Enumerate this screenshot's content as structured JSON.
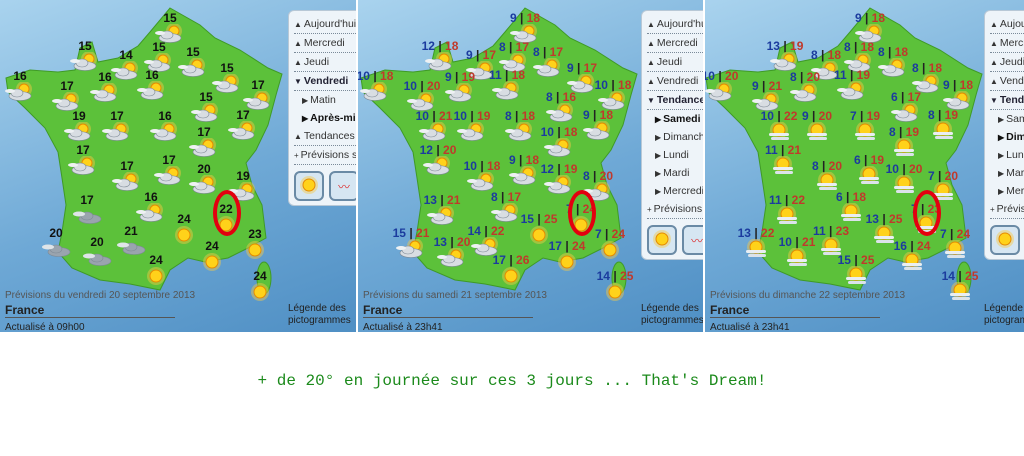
{
  "panels": [
    {
      "menu": [
        {
          "label": "Aujourd'hui",
          "state": "collapsed"
        },
        {
          "label": "Mercredi",
          "state": "collapsed"
        },
        {
          "label": "Jeudi",
          "state": "collapsed"
        },
        {
          "label": "Vendredi",
          "state": "expanded"
        },
        {
          "label": "Matin",
          "state": "sub"
        },
        {
          "label": "Après-midi",
          "state": "selected"
        },
        {
          "label": "Tendances jours suivants",
          "state": "collapsed"
        },
        {
          "label": "Prévisions saisonnières",
          "state": "link"
        }
      ],
      "forecast_date": "Prévisions du vendredi 20 septembre 2013",
      "region": "France",
      "updated": "Actualisé à 09h00",
      "legend": "Légende des pictogrammes",
      "cities": [
        {
          "t": "15",
          "icon": "partly-cloudy"
        },
        {
          "t": "15",
          "icon": "partly-cloudy"
        },
        {
          "t": "14",
          "icon": "partly-cloudy"
        },
        {
          "t": "15",
          "icon": "partly-cloudy"
        },
        {
          "t": "15",
          "icon": "partly-cloudy"
        },
        {
          "t": "15",
          "icon": "partly-cloudy"
        },
        {
          "t": "16",
          "icon": "partly-cloudy"
        },
        {
          "t": "17",
          "icon": "partly-cloudy"
        },
        {
          "t": "16",
          "icon": "partly-cloudy"
        },
        {
          "t": "16",
          "icon": "partly-cloudy"
        },
        {
          "t": "17",
          "icon": "partly-cloudy"
        },
        {
          "t": "15",
          "icon": "partly-cloudy"
        },
        {
          "t": "19",
          "icon": "partly-cloudy"
        },
        {
          "t": "17",
          "icon": "partly-cloudy"
        },
        {
          "t": "16",
          "icon": "partly-cloudy"
        },
        {
          "t": "17",
          "icon": "partly-cloudy"
        },
        {
          "t": "17",
          "icon": "partly-cloudy"
        },
        {
          "t": "17",
          "icon": "partly-cloudy"
        },
        {
          "t": "17",
          "icon": "partly-cloudy"
        },
        {
          "t": "17",
          "icon": "partly-cloudy"
        },
        {
          "t": "20",
          "icon": "partly-cloudy"
        },
        {
          "t": "19",
          "icon": "partly-cloudy"
        },
        {
          "t": "17",
          "icon": "cloudy"
        },
        {
          "t": "16",
          "icon": "partly-cloudy"
        },
        {
          "t": "24",
          "icon": "sun"
        },
        {
          "t": "22",
          "icon": "sun"
        },
        {
          "t": "23",
          "icon": "sun"
        },
        {
          "t": "20",
          "icon": "cloudy"
        },
        {
          "t": "20",
          "icon": "cloudy"
        },
        {
          "t": "21",
          "icon": "cloudy"
        },
        {
          "t": "24",
          "icon": "sun"
        },
        {
          "t": "24",
          "icon": "sun"
        },
        {
          "t": "24",
          "icon": "sun"
        }
      ]
    },
    {
      "menu": [
        {
          "label": "Aujourd'hui",
          "state": "collapsed"
        },
        {
          "label": "Mercredi",
          "state": "collapsed"
        },
        {
          "label": "Jeudi",
          "state": "collapsed"
        },
        {
          "label": "Vendredi",
          "state": "collapsed"
        },
        {
          "label": "Tendances jours suivants",
          "state": "expanded"
        },
        {
          "label": "Samedi",
          "state": "selected"
        },
        {
          "label": "Dimanche",
          "state": "sub"
        },
        {
          "label": "Lundi",
          "state": "sub"
        },
        {
          "label": "Mardi",
          "state": "sub"
        },
        {
          "label": "Mercredi",
          "state": "sub"
        },
        {
          "label": "Prévisions saisonnières",
          "state": "link"
        }
      ],
      "forecast_date": "Prévisions du samedi 21 septembre 2013",
      "region": "France",
      "updated": "Actualisé à 23h41",
      "legend": "Légende des pictogrammes",
      "cities": [
        {
          "min": "9",
          "max": "18",
          "icon": "partly-cloudy"
        },
        {
          "min": "12",
          "max": "18",
          "icon": "partly-cloudy"
        },
        {
          "min": "9",
          "max": "17",
          "icon": "partly-cloudy"
        },
        {
          "min": "8",
          "max": "17",
          "icon": "partly-cloudy"
        },
        {
          "min": "8",
          "max": "17",
          "icon": "partly-cloudy"
        },
        {
          "min": "9",
          "max": "17",
          "icon": "partly-cloudy"
        },
        {
          "min": "10",
          "max": "18",
          "icon": "partly-cloudy"
        },
        {
          "min": "10",
          "max": "20",
          "icon": "partly-cloudy"
        },
        {
          "min": "9",
          "max": "19",
          "icon": "partly-cloudy"
        },
        {
          "min": "11",
          "max": "18",
          "icon": "partly-cloudy"
        },
        {
          "min": "10",
          "max": "18",
          "icon": "partly-cloudy"
        },
        {
          "min": "8",
          "max": "16",
          "icon": "partly-cloudy"
        },
        {
          "min": "10",
          "max": "21",
          "icon": "partly-cloudy"
        },
        {
          "min": "10",
          "max": "19",
          "icon": "partly-cloudy"
        },
        {
          "min": "8",
          "max": "18",
          "icon": "partly-cloudy"
        },
        {
          "min": "9",
          "max": "18",
          "icon": "partly-cloudy"
        },
        {
          "min": "10",
          "max": "18",
          "icon": "partly-cloudy"
        },
        {
          "min": "12",
          "max": "20",
          "icon": "partly-cloudy"
        },
        {
          "min": "10",
          "max": "18",
          "icon": "partly-cloudy"
        },
        {
          "min": "9",
          "max": "18",
          "icon": "partly-cloudy"
        },
        {
          "min": "12",
          "max": "19",
          "icon": "partly-cloudy"
        },
        {
          "min": "8",
          "max": "20",
          "icon": "partly-cloudy"
        },
        {
          "min": "13",
          "max": "21",
          "icon": "partly-cloudy"
        },
        {
          "min": "8",
          "max": "17",
          "icon": "partly-cloudy"
        },
        {
          "min": "15",
          "max": "25",
          "icon": "sun"
        },
        {
          "min": "7",
          "max": "24",
          "icon": "sun"
        },
        {
          "min": "7",
          "max": "24",
          "icon": "sun"
        },
        {
          "min": "15",
          "max": "21",
          "icon": "partly-cloudy"
        },
        {
          "min": "13",
          "max": "20",
          "icon": "partly-cloudy"
        },
        {
          "min": "14",
          "max": "22",
          "icon": "partly-cloudy"
        },
        {
          "min": "17",
          "max": "24",
          "icon": "sun"
        },
        {
          "min": "17",
          "max": "26",
          "icon": "sun"
        },
        {
          "min": "14",
          "max": "25",
          "icon": "sun"
        }
      ]
    },
    {
      "menu": [
        {
          "label": "Aujourd'hui",
          "state": "collapsed"
        },
        {
          "label": "Mercredi",
          "state": "collapsed"
        },
        {
          "label": "Jeudi",
          "state": "collapsed"
        },
        {
          "label": "Vendredi",
          "state": "collapsed"
        },
        {
          "label": "Tendances jours suivants",
          "state": "expanded"
        },
        {
          "label": "Samedi",
          "state": "sub"
        },
        {
          "label": "Dimanche",
          "state": "selected"
        },
        {
          "label": "Lundi",
          "state": "sub"
        },
        {
          "label": "Mardi",
          "state": "sub"
        },
        {
          "label": "Mercredi",
          "state": "sub"
        },
        {
          "label": "Prévisions saisonnières",
          "state": "link"
        }
      ],
      "forecast_date": "Prévisions du dimanche 22 septembre 2013",
      "region": "France",
      "updated": "Actualisé à 23h41",
      "legend": "Légende des pictogrammes",
      "cities": [
        {
          "min": "9",
          "max": "18",
          "icon": "partly-cloudy"
        },
        {
          "min": "13",
          "max": "19",
          "icon": "partly-cloudy"
        },
        {
          "min": "8",
          "max": "18",
          "icon": "partly-cloudy"
        },
        {
          "min": "8",
          "max": "18",
          "icon": "partly-cloudy"
        },
        {
          "min": "8",
          "max": "18",
          "icon": "partly-cloudy"
        },
        {
          "min": "8",
          "max": "18",
          "icon": "partly-cloudy"
        },
        {
          "min": "10",
          "max": "20",
          "icon": "partly-cloudy"
        },
        {
          "min": "9",
          "max": "21",
          "icon": "partly-cloudy"
        },
        {
          "min": "8",
          "max": "20",
          "icon": "partly-cloudy"
        },
        {
          "min": "11",
          "max": "19",
          "icon": "partly-cloudy"
        },
        {
          "min": "9",
          "max": "18",
          "icon": "partly-cloudy"
        },
        {
          "min": "6",
          "max": "17",
          "icon": "partly-cloudy"
        },
        {
          "min": "10",
          "max": "22",
          "icon": "sun-fog"
        },
        {
          "min": "9",
          "max": "20",
          "icon": "sun-fog"
        },
        {
          "min": "7",
          "max": "19",
          "icon": "sun-fog"
        },
        {
          "min": "8",
          "max": "19",
          "icon": "sun-fog"
        },
        {
          "min": "8",
          "max": "19",
          "icon": "sun-fog"
        },
        {
          "min": "11",
          "max": "21",
          "icon": "sun-fog"
        },
        {
          "min": "8",
          "max": "20",
          "icon": "sun-fog"
        },
        {
          "min": "6",
          "max": "19",
          "icon": "sun-fog"
        },
        {
          "min": "10",
          "max": "20",
          "icon": "sun-fog"
        },
        {
          "min": "7",
          "max": "20",
          "icon": "sun-fog"
        },
        {
          "min": "11",
          "max": "22",
          "icon": "sun-fog"
        },
        {
          "min": "6",
          "max": "18",
          "icon": "sun-fog"
        },
        {
          "min": "13",
          "max": "25",
          "icon": "sun-fog"
        },
        {
          "min": "7",
          "max": "23",
          "icon": "sun-fog"
        },
        {
          "min": "7",
          "max": "24",
          "icon": "sun-fog"
        },
        {
          "min": "13",
          "max": "22",
          "icon": "sun-fog"
        },
        {
          "min": "10",
          "max": "21",
          "icon": "sun-fog"
        },
        {
          "min": "11",
          "max": "23",
          "icon": "sun-fog"
        },
        {
          "min": "16",
          "max": "24",
          "icon": "sun-fog"
        },
        {
          "min": "15",
          "max": "25",
          "icon": "sun-fog"
        },
        {
          "min": "14",
          "max": "25",
          "icon": "sun-fog"
        }
      ]
    }
  ],
  "caption": "+ de 20° en journée sur ces 3 jours ... That's Dream!",
  "colors": {
    "land": "#5cc13a",
    "sea": "#6fa9d6",
    "min_temp": "#1b3b9e",
    "max_temp": "#c0392b",
    "highlight_ring": "#e3000f",
    "caption": "#1b8a1b"
  }
}
